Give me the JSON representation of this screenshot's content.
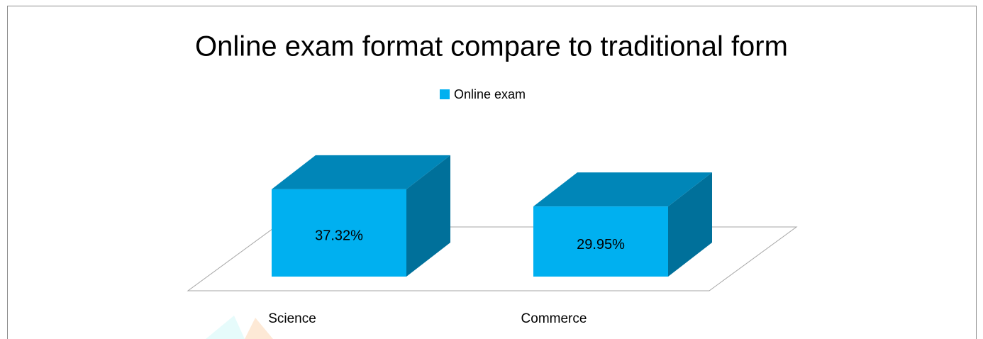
{
  "chart_data": {
    "type": "bar",
    "three_d": true,
    "title": "Online exam format compare to traditional form",
    "categories": [
      "Science",
      "Commerce"
    ],
    "series": [
      {
        "name": "Online exam",
        "color": "#00b0f0",
        "values": [
          37.32,
          29.95
        ],
        "value_labels": [
          "37.32%",
          "29.95%"
        ]
      }
    ],
    "legend": "top"
  }
}
